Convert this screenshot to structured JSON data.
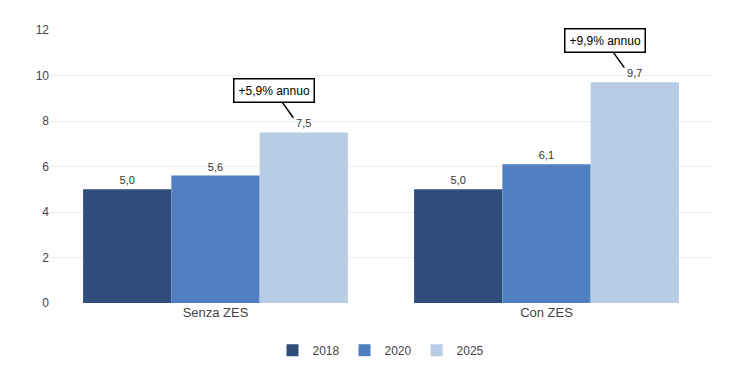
{
  "chart_data": {
    "type": "bar",
    "categories": [
      "Senza ZES",
      "Con ZES"
    ],
    "series": [
      {
        "name": "2018",
        "color": "#2E4D7B",
        "values": [
          5.0,
          5.0
        ],
        "value_labels": [
          "5,0",
          "5,0"
        ]
      },
      {
        "name": "2020",
        "color": "#4F7FC0",
        "values": [
          5.6,
          6.1
        ],
        "value_labels": [
          "5,6",
          "6,1"
        ]
      },
      {
        "name": "2025",
        "color": "#B8CCE4",
        "values": [
          7.5,
          9.7
        ],
        "value_labels": [
          "7,5",
          "9,7"
        ]
      }
    ],
    "ylim": [
      0,
      12
    ],
    "yticks": [
      0,
      2,
      4,
      6,
      8,
      10,
      12
    ],
    "grid": true,
    "data_labels": true,
    "legend": "bottom",
    "annotations": [
      {
        "text": "+5,9% annuo",
        "category": "Senza ZES"
      },
      {
        "text": "+9,9% annuo",
        "category": "Con ZES"
      }
    ]
  }
}
